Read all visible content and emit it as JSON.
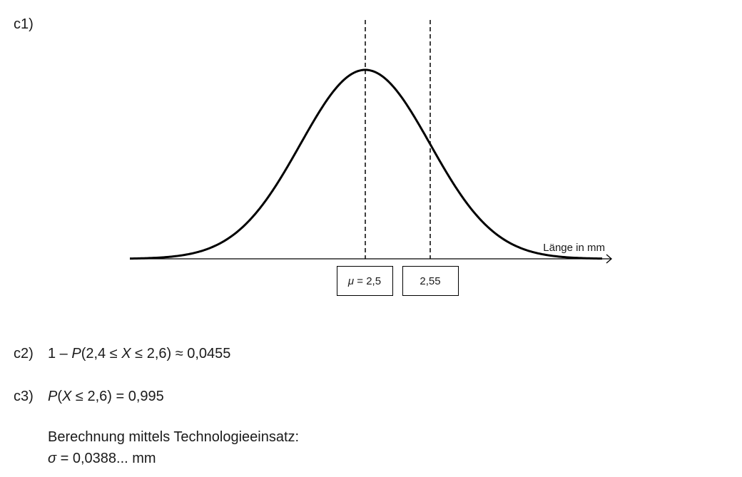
{
  "sections": [
    {
      "label": "c1)",
      "diagram": {
        "axis_label": "Länge in mm",
        "markers": [
          {
            "parts": [
              "μ",
              " = 2,5"
            ]
          },
          {
            "parts": [
              "2,55"
            ]
          }
        ]
      }
    },
    {
      "label": "c2)",
      "lines": [
        {
          "parts": [
            "1 – ",
            "P",
            "(2,4 ≤ ",
            "X",
            " ≤ 2,6) ≈ 0,0455"
          ]
        }
      ]
    },
    {
      "label": "c3)",
      "lines": [
        {
          "parts": [
            "P",
            "(",
            "X",
            " ≤ 2,6) = 0,995"
          ]
        },
        {
          "parts": [
            "Berechnung mittels Technologieeinsatz:"
          ]
        },
        {
          "parts": [
            "σ",
            " = 0,0388... mm"
          ]
        }
      ]
    }
  ]
}
